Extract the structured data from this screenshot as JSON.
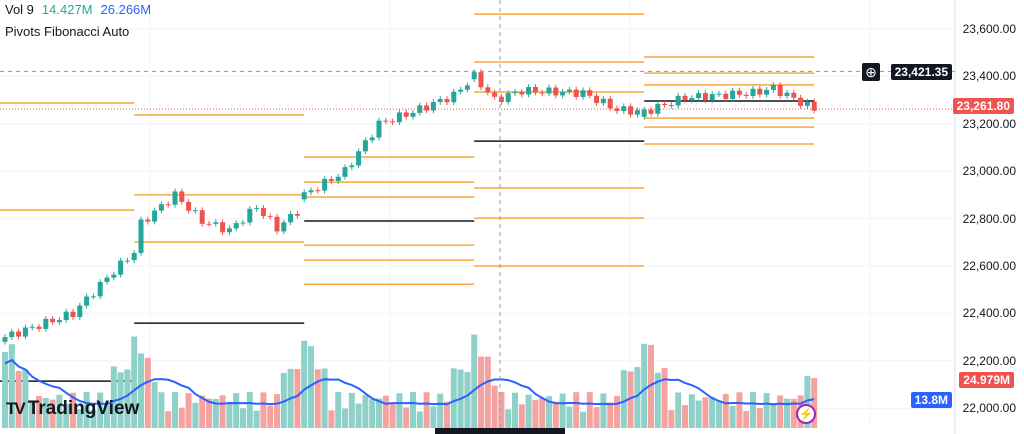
{
  "legend": {
    "volume_label": "Vol 9",
    "volume_value": "14.427M",
    "volume_ma": "26.266M",
    "pivots_label": "Pivots Fibonacci Auto"
  },
  "price_axis": {
    "ticks": [
      "23,600.00",
      "23,400.00",
      "23,200.00",
      "23,000.00",
      "22,800.00",
      "22,600.00",
      "22,400.00",
      "22,200.00",
      "22,000.00"
    ]
  },
  "tags": {
    "crosshair_price": "23,421.35",
    "last_price": "23,261.80",
    "last_volume": "24.979M",
    "volume_ma": "13.8M"
  },
  "logo": {
    "text": "TradingView"
  },
  "colors": {
    "up": "#26a69a",
    "down": "#ef5350",
    "vol_up": "#8fd0c8",
    "vol_down": "#f5a3a1",
    "ma": "#2962ff",
    "pivot": "#f9a63d",
    "pivot_p": "#131722"
  },
  "chart_data": {
    "type": "candlestick",
    "ylim": [
      21950,
      23700
    ],
    "candle_count": 120,
    "close_keypoints": [
      [
        0,
        22300
      ],
      [
        5,
        22350
      ],
      [
        10,
        22400
      ],
      [
        15,
        22550
      ],
      [
        19,
        22660
      ],
      [
        20,
        22780
      ],
      [
        25,
        22900
      ],
      [
        29,
        22790
      ],
      [
        33,
        22750
      ],
      [
        37,
        22850
      ],
      [
        40,
        22760
      ],
      [
        43,
        22830
      ],
      [
        44,
        22900
      ],
      [
        50,
        23000
      ],
      [
        55,
        23200
      ],
      [
        60,
        23250
      ],
      [
        66,
        23320
      ],
      [
        69,
        23400
      ],
      [
        72,
        23300
      ],
      [
        76,
        23340
      ],
      [
        85,
        23330
      ],
      [
        90,
        23260
      ],
      [
        94,
        23250
      ],
      [
        100,
        23310
      ],
      [
        110,
        23330
      ],
      [
        113,
        23350
      ],
      [
        119,
        23262
      ]
    ],
    "session_starts": [
      0,
      19,
      44,
      69,
      94
    ],
    "pivot_levels": [
      {
        "start": -6,
        "end": 19,
        "P": 22114,
        "levels": [
          23288,
          22836
        ]
      },
      {
        "start": 19,
        "end": 44,
        "P": 22359,
        "levels": [
          23237,
          22900,
          22701
        ]
      },
      {
        "start": 44,
        "end": 69,
        "P": 22790,
        "levels": [
          23060,
          22954,
          22891,
          22688,
          22625,
          22523
        ]
      },
      {
        "start": 69,
        "end": 94,
        "P": 23127,
        "levels": [
          23663,
          23461,
          23334,
          22929,
          22802,
          22600
        ]
      },
      {
        "start": 94,
        "end": 119,
        "P": 23296,
        "levels": [
          23482,
          23414,
          23364,
          23224,
          23186,
          23115
        ]
      }
    ],
    "crosshair": {
      "price": 23421.35
    },
    "last_price": 23261.8,
    "volume_ma_last": 13.8,
    "volume_last": 24.979
  }
}
